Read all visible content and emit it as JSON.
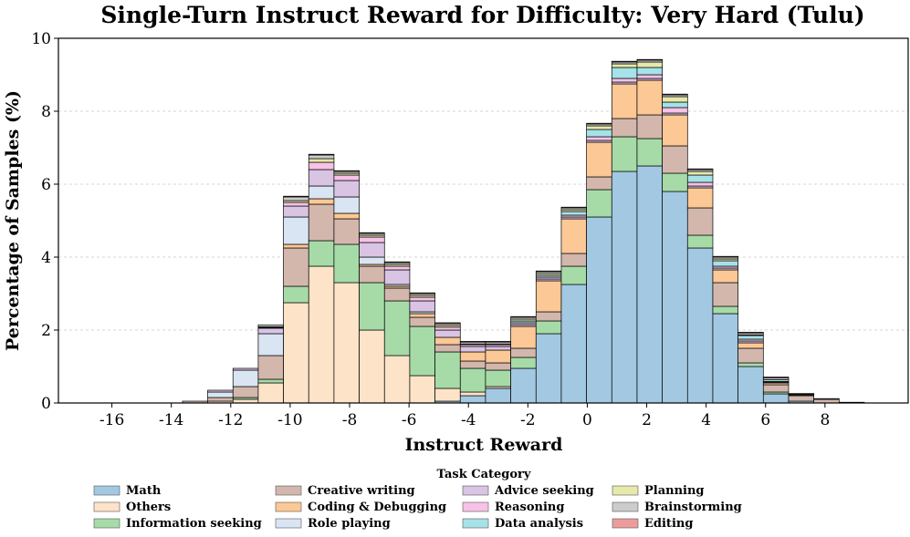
{
  "chart_data": {
    "type": "bar",
    "stacked": true,
    "title": "Single-Turn Instruct Reward for Difficulty: Very Hard (Tulu)",
    "xlabel": "Instruct Reward",
    "ylabel": "Percentage of Samples (%)",
    "xlim": [
      -17.8,
      10.8
    ],
    "ylim": [
      0,
      10
    ],
    "xticks": [
      "-16",
      "-14",
      "-12",
      "-10",
      "-8",
      "-6",
      "-4",
      "-2",
      "0",
      "2",
      "4",
      "6",
      "8"
    ],
    "yticks": [
      "0",
      "2",
      "4",
      "6",
      "8",
      "10"
    ],
    "grid": "y-dashed",
    "bin_width": 0.85,
    "x": [
      -16.6,
      -15.75,
      -14.9,
      -14.05,
      -13.2,
      -12.35,
      -11.5,
      -10.65,
      -9.8,
      -8.95,
      -8.1,
      -7.25,
      -6.4,
      -5.55,
      -4.7,
      -3.85,
      -3.0,
      -2.15,
      -1.3,
      -0.45,
      0.4,
      1.25,
      2.1,
      2.95,
      3.8,
      4.65,
      5.5,
      6.35,
      7.2,
      8.05,
      8.9
    ],
    "legend": {
      "title": "Task Category",
      "placement": "bottom-center",
      "columns": 5
    },
    "series": [
      {
        "name": "Math",
        "color": "#a3c8e2",
        "values": [
          0,
          0,
          0,
          0,
          0,
          0,
          0,
          0,
          0,
          0,
          0,
          0,
          0,
          0,
          0.05,
          0.2,
          0.4,
          0.95,
          1.9,
          3.25,
          5.1,
          6.35,
          6.5,
          5.8,
          4.25,
          2.45,
          1.0,
          0.25,
          0.05,
          0,
          0
        ]
      },
      {
        "name": "Others",
        "color": "#fde3c8",
        "values": [
          0,
          0,
          0,
          0,
          0,
          0.05,
          0.1,
          0.55,
          2.75,
          3.75,
          3.3,
          2.0,
          1.3,
          0.75,
          0.35,
          0.1,
          0.05,
          0,
          0,
          0,
          0,
          0,
          0,
          0,
          0,
          0,
          0,
          0,
          0,
          0,
          0
        ]
      },
      {
        "name": "Information seeking",
        "color": "#a6dba8",
        "values": [
          0,
          0,
          0,
          0,
          0,
          0,
          0.05,
          0.1,
          0.45,
          0.7,
          1.05,
          1.3,
          1.5,
          1.35,
          1.0,
          0.65,
          0.45,
          0.3,
          0.35,
          0.5,
          0.75,
          0.95,
          0.75,
          0.5,
          0.35,
          0.2,
          0.1,
          0.05,
          0,
          0,
          0
        ]
      },
      {
        "name": "Creative writing",
        "color": "#d3b7ad",
        "values": [
          0,
          0,
          0,
          0,
          0.05,
          0.1,
          0.3,
          0.65,
          1.05,
          1.0,
          0.7,
          0.45,
          0.35,
          0.25,
          0.2,
          0.2,
          0.2,
          0.25,
          0.25,
          0.35,
          0.35,
          0.5,
          0.65,
          0.75,
          0.75,
          0.65,
          0.4,
          0.2,
          0.15,
          0.1,
          0.02
        ]
      },
      {
        "name": "Coding & Debugging",
        "color": "#fcc895",
        "values": [
          0,
          0,
          0,
          0,
          0,
          0,
          0,
          0,
          0.1,
          0.15,
          0.15,
          0.05,
          0.05,
          0.1,
          0.2,
          0.25,
          0.35,
          0.6,
          0.85,
          0.95,
          0.95,
          0.95,
          0.95,
          0.85,
          0.55,
          0.35,
          0.15,
          0.05,
          0.02,
          0,
          0
        ]
      },
      {
        "name": "Role playing",
        "color": "#d9e5f2",
        "values": [
          0,
          0,
          0,
          0,
          0,
          0.15,
          0.45,
          0.6,
          0.75,
          0.35,
          0.45,
          0.2,
          0.05,
          0.05,
          0,
          0,
          0,
          0,
          0,
          0,
          0,
          0,
          0,
          0,
          0,
          0,
          0,
          0,
          0,
          0,
          0
        ]
      },
      {
        "name": "Advice seeking",
        "color": "#d9c4e4",
        "values": [
          0,
          0,
          0,
          0,
          0,
          0.05,
          0.05,
          0.15,
          0.3,
          0.45,
          0.45,
          0.4,
          0.4,
          0.3,
          0.2,
          0.15,
          0.1,
          0.05,
          0.05,
          0.05,
          0.05,
          0.05,
          0.05,
          0.05,
          0.05,
          0.05,
          0.05,
          0.02,
          0,
          0,
          0
        ]
      },
      {
        "name": "Reasoning",
        "color": "#f7c2e6",
        "values": [
          0,
          0,
          0,
          0,
          0,
          0,
          0,
          0.02,
          0.1,
          0.2,
          0.15,
          0.15,
          0.1,
          0.1,
          0.08,
          0.05,
          0.05,
          0.05,
          0.05,
          0.05,
          0.1,
          0.1,
          0.1,
          0.15,
          0.1,
          0.05,
          0.05,
          0.02,
          0,
          0,
          0
        ]
      },
      {
        "name": "Data analysis",
        "color": "#a6e2e8",
        "values": [
          0,
          0,
          0,
          0,
          0,
          0,
          0,
          0,
          0,
          0,
          0,
          0,
          0,
          0,
          0,
          0,
          0,
          0.05,
          0.05,
          0.1,
          0.2,
          0.3,
          0.2,
          0.15,
          0.2,
          0.15,
          0.1,
          0.05,
          0,
          0,
          0
        ]
      },
      {
        "name": "Planning",
        "color": "#e6e9a9",
        "values": [
          0,
          0,
          0,
          0,
          0,
          0,
          0,
          0.02,
          0.05,
          0.1,
          0.05,
          0.05,
          0.05,
          0.05,
          0.05,
          0.02,
          0.02,
          0.05,
          0.05,
          0.05,
          0.1,
          0.1,
          0.15,
          0.15,
          0.1,
          0.05,
          0.02,
          0,
          0,
          0,
          0
        ]
      },
      {
        "name": "Brainstorming",
        "color": "#cccccc",
        "values": [
          0,
          0,
          0,
          0,
          0,
          0,
          0,
          0.05,
          0.1,
          0.1,
          0.05,
          0.05,
          0.05,
          0.05,
          0.05,
          0.05,
          0.05,
          0.05,
          0.05,
          0.05,
          0.05,
          0.05,
          0.05,
          0.05,
          0.05,
          0.05,
          0.05,
          0.05,
          0.02,
          0,
          0
        ]
      },
      {
        "name": "Editing",
        "color": "#ec9c9c",
        "values": [
          0,
          0,
          0,
          0,
          0,
          0,
          0,
          0,
          0.02,
          0.02,
          0.02,
          0.02,
          0.02,
          0.02,
          0.02,
          0.02,
          0.02,
          0.02,
          0.02,
          0.02,
          0.02,
          0.02,
          0.02,
          0.02,
          0.02,
          0.02,
          0.02,
          0.02,
          0.02,
          0.02,
          0
        ]
      }
    ]
  }
}
